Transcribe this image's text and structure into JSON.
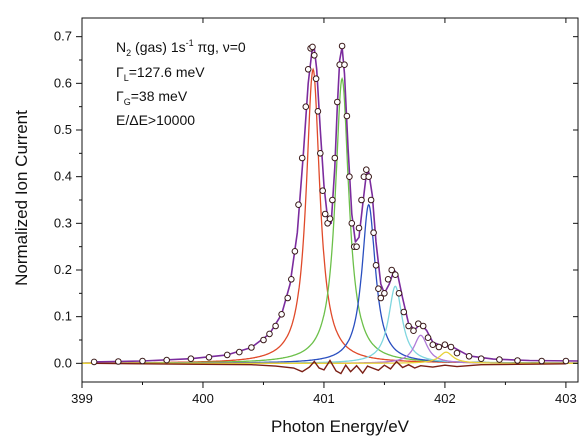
{
  "chart_data": {
    "type": "line",
    "title": "",
    "xlabel": "Photon Energy/eV",
    "ylabel": "Normalized Ion Current",
    "xlim": [
      399,
      403.1
    ],
    "ylim": [
      -0.04,
      0.74
    ],
    "xticks": [
      "399",
      "400",
      "401",
      "402",
      "403"
    ],
    "yticks": [
      "0.0",
      "0.1",
      "0.2",
      "0.3",
      "0.4",
      "0.5",
      "0.6",
      "0.7"
    ],
    "grid": false,
    "legend": "none",
    "annotations": {
      "line1_main": "N",
      "line1_sub": "2",
      "line1_rest": " (gas)  1s",
      "line1_sup": "-1",
      "line1_tail": " πg,  ν=0",
      "line2_main": "Γ",
      "line2_sub": "L",
      "line2_rest": "=127.6 meV",
      "line3_main": "Γ",
      "line3_sub": "G",
      "line3_rest": "=38 meV",
      "line4": "E/ΔE>10000"
    },
    "series": [
      {
        "kind": "markers",
        "color": "#3a1a1a",
        "x": [
          399.1,
          399.3,
          399.5,
          399.7,
          399.9,
          400.05,
          400.2,
          400.3,
          400.4,
          400.5,
          400.55,
          400.6,
          400.65,
          400.7,
          400.73,
          400.76,
          400.79,
          400.82,
          400.85,
          400.87,
          400.89,
          400.905,
          400.92,
          400.935,
          400.95,
          400.97,
          400.99,
          401.01,
          401.03,
          401.05,
          401.07,
          401.09,
          401.11,
          401.13,
          401.15,
          401.17,
          401.19,
          401.21,
          401.23,
          401.25,
          401.27,
          401.29,
          401.31,
          401.33,
          401.35,
          401.37,
          401.39,
          401.41,
          401.43,
          401.45,
          401.47,
          401.5,
          401.53,
          401.56,
          401.59,
          401.62,
          401.66,
          401.7,
          401.74,
          401.78,
          401.82,
          401.86,
          401.9,
          401.95,
          402.0,
          402.05,
          402.1,
          402.2,
          402.3,
          402.45,
          402.6,
          402.8,
          403.0
        ],
        "y": [
          0.003,
          0.004,
          0.005,
          0.007,
          0.01,
          0.013,
          0.018,
          0.024,
          0.034,
          0.05,
          0.063,
          0.08,
          0.105,
          0.14,
          0.18,
          0.24,
          0.34,
          0.44,
          0.55,
          0.63,
          0.675,
          0.678,
          0.66,
          0.61,
          0.54,
          0.45,
          0.37,
          0.32,
          0.3,
          0.31,
          0.35,
          0.44,
          0.56,
          0.64,
          0.68,
          0.64,
          0.53,
          0.4,
          0.3,
          0.25,
          0.25,
          0.29,
          0.35,
          0.4,
          0.415,
          0.4,
          0.35,
          0.28,
          0.21,
          0.16,
          0.14,
          0.15,
          0.18,
          0.2,
          0.19,
          0.15,
          0.11,
          0.08,
          0.07,
          0.085,
          0.08,
          0.055,
          0.04,
          0.035,
          0.04,
          0.035,
          0.022,
          0.015,
          0.01,
          0.008,
          0.006,
          0.005,
          0.005
        ]
      },
      {
        "kind": "fit-total",
        "color": "#7b2c9e",
        "x": [
          399.1,
          399.5,
          399.9,
          400.2,
          400.4,
          400.55,
          400.65,
          400.72,
          400.78,
          400.83,
          400.87,
          400.9,
          400.92,
          400.94,
          400.97,
          401.0,
          401.03,
          401.06,
          401.09,
          401.11,
          401.13,
          401.15,
          401.17,
          401.2,
          401.23,
          401.26,
          401.29,
          401.32,
          401.35,
          401.37,
          401.4,
          401.43,
          401.47,
          401.5,
          401.54,
          401.58,
          401.61,
          401.65,
          401.7,
          401.75,
          401.8,
          401.85,
          401.9,
          402.0,
          402.05,
          402.1,
          402.2,
          402.4,
          402.7,
          403.1
        ],
        "y": [
          0.003,
          0.005,
          0.01,
          0.018,
          0.034,
          0.063,
          0.105,
          0.17,
          0.28,
          0.45,
          0.6,
          0.668,
          0.675,
          0.63,
          0.5,
          0.38,
          0.31,
          0.3,
          0.42,
          0.55,
          0.65,
          0.678,
          0.62,
          0.46,
          0.32,
          0.26,
          0.27,
          0.34,
          0.405,
          0.41,
          0.36,
          0.26,
          0.17,
          0.15,
          0.17,
          0.2,
          0.19,
          0.14,
          0.085,
          0.072,
          0.085,
          0.07,
          0.045,
          0.035,
          0.037,
          0.03,
          0.016,
          0.009,
          0.006,
          0.005
        ]
      },
      {
        "kind": "lorentz",
        "color": "#e04a2a",
        "center": 400.91,
        "amplitude": 0.63,
        "width": 0.068
      },
      {
        "kind": "lorentz",
        "color": "#6cc04a",
        "center": 401.15,
        "amplitude": 0.61,
        "width": 0.068
      },
      {
        "kind": "lorentz",
        "color": "#2a4fc0",
        "center": 401.37,
        "amplitude": 0.34,
        "width": 0.068
      },
      {
        "kind": "lorentz",
        "color": "#7fd6df",
        "center": 401.59,
        "amplitude": 0.165,
        "width": 0.068
      },
      {
        "kind": "lorentz",
        "color": "#b07ad8",
        "center": 401.8,
        "amplitude": 0.06,
        "width": 0.068
      },
      {
        "kind": "lorentz",
        "color": "#e8d23a",
        "center": 402.01,
        "amplitude": 0.024,
        "width": 0.068
      },
      {
        "kind": "residual",
        "color": "#7a1e14",
        "x": [
          399.1,
          399.5,
          400.0,
          400.4,
          400.6,
          400.75,
          400.82,
          400.88,
          400.92,
          400.96,
          401.0,
          401.05,
          401.1,
          401.14,
          401.18,
          401.22,
          401.27,
          401.32,
          401.36,
          401.4,
          401.45,
          401.5,
          401.55,
          401.6,
          401.65,
          401.7,
          401.75,
          401.8,
          401.9,
          402.0,
          402.1,
          402.3,
          402.6,
          403.0
        ],
        "y": [
          0.0,
          -0.001,
          -0.002,
          -0.003,
          -0.006,
          -0.01,
          -0.018,
          -0.008,
          0.004,
          -0.01,
          -0.014,
          0.006,
          -0.016,
          -0.022,
          -0.004,
          -0.018,
          -0.005,
          -0.021,
          -0.006,
          -0.01,
          -0.015,
          -0.004,
          -0.012,
          0.004,
          -0.009,
          -0.003,
          -0.01,
          -0.005,
          -0.008,
          -0.004,
          -0.007,
          -0.003,
          -0.002,
          -0.001
        ]
      }
    ]
  }
}
